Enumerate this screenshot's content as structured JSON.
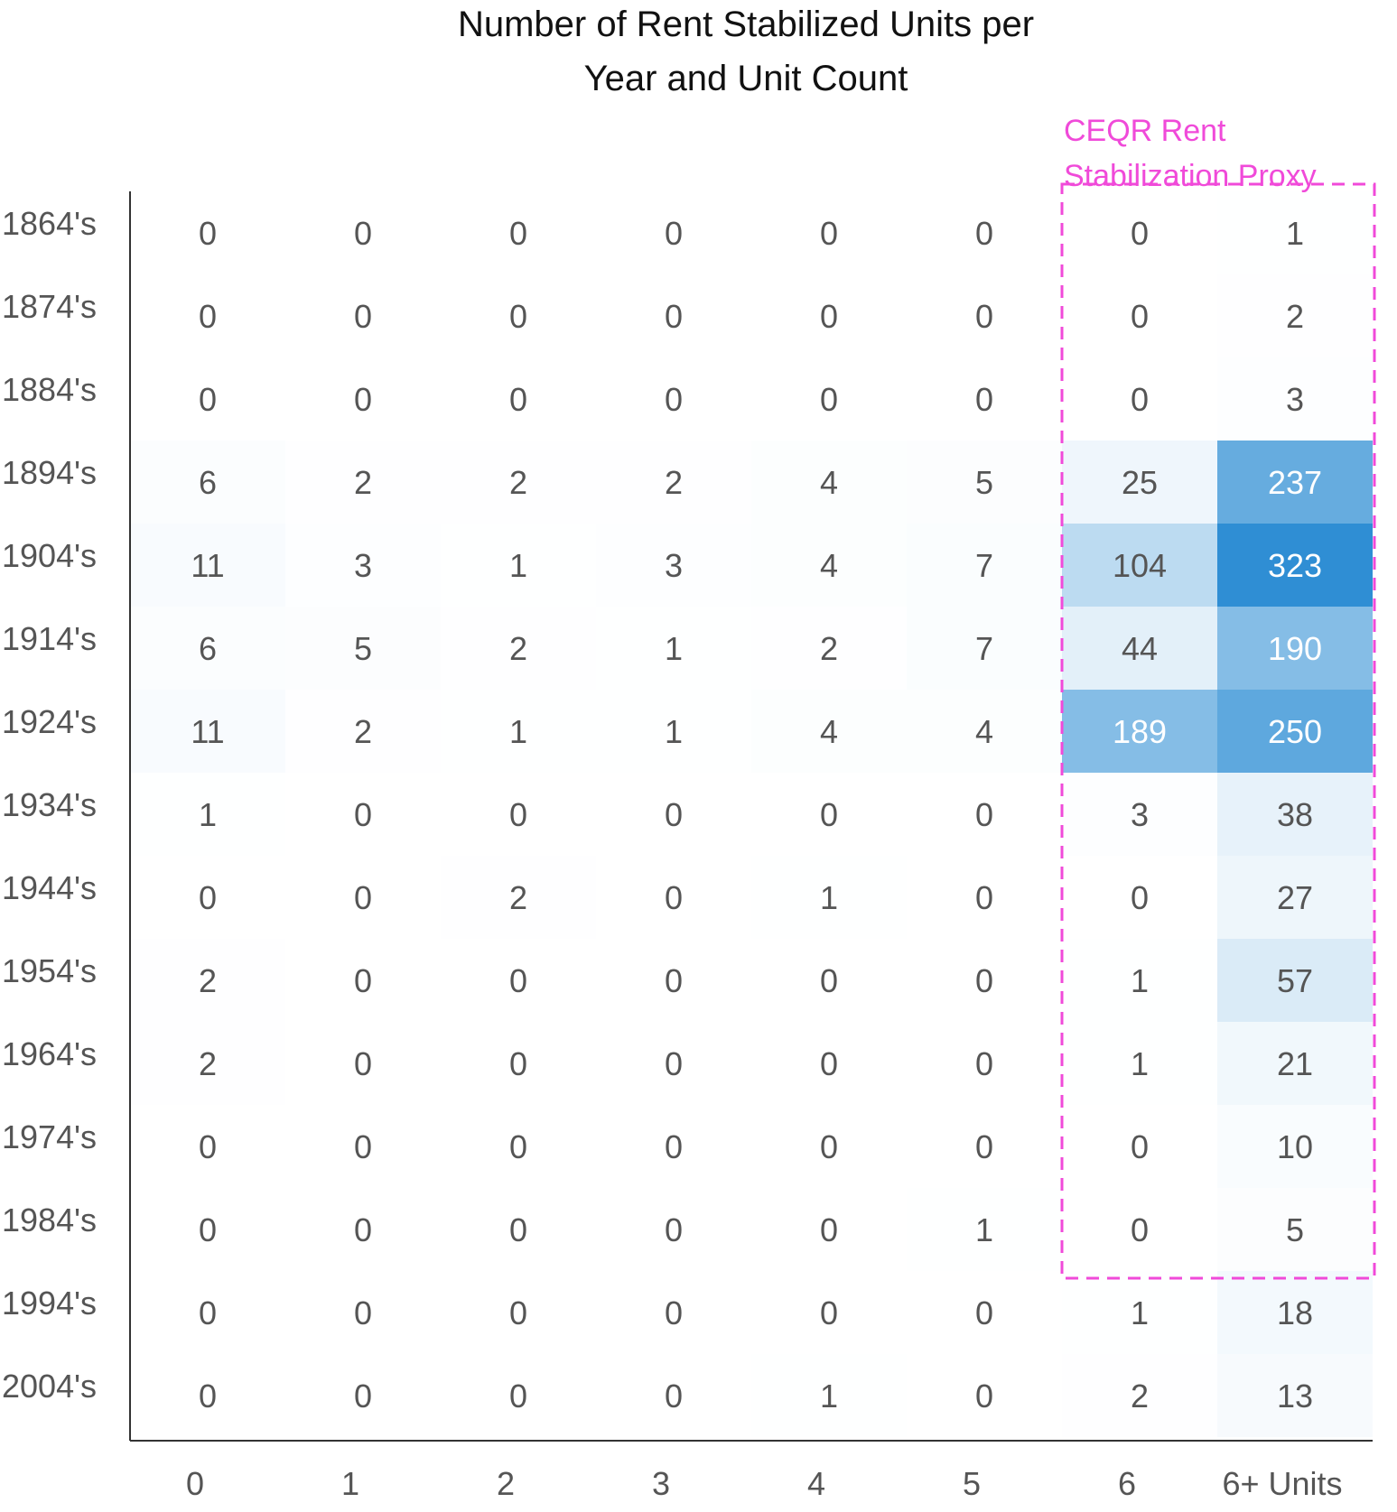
{
  "chart_data": {
    "type": "heatmap",
    "title_lines": [
      "Number of Rent Stabilized Units per",
      "Year and Unit Count"
    ],
    "x": [
      "0",
      "1",
      "2",
      "3",
      "4",
      "5",
      "6",
      "6+ Units"
    ],
    "y": [
      "1864's",
      "1874's",
      "1884's",
      "1894's",
      "1904's",
      "1914's",
      "1924's",
      "1934's",
      "1944's",
      "1954's",
      "1964's",
      "1974's",
      "1984's",
      "1994's",
      "2004's"
    ],
    "values": [
      [
        0,
        0,
        0,
        0,
        0,
        0,
        0,
        1
      ],
      [
        0,
        0,
        0,
        0,
        0,
        0,
        0,
        2
      ],
      [
        0,
        0,
        0,
        0,
        0,
        0,
        0,
        3
      ],
      [
        6,
        2,
        2,
        2,
        4,
        5,
        25,
        237
      ],
      [
        11,
        3,
        1,
        3,
        4,
        7,
        104,
        323
      ],
      [
        6,
        5,
        2,
        1,
        2,
        7,
        44,
        190
      ],
      [
        11,
        2,
        1,
        1,
        4,
        4,
        189,
        250
      ],
      [
        1,
        0,
        0,
        0,
        0,
        0,
        3,
        38
      ],
      [
        0,
        0,
        2,
        0,
        1,
        0,
        0,
        27
      ],
      [
        2,
        0,
        0,
        0,
        0,
        0,
        1,
        57
      ],
      [
        2,
        0,
        0,
        0,
        0,
        0,
        1,
        21
      ],
      [
        0,
        0,
        0,
        0,
        0,
        0,
        0,
        10
      ],
      [
        0,
        0,
        0,
        0,
        0,
        1,
        0,
        5
      ],
      [
        0,
        0,
        0,
        0,
        0,
        0,
        1,
        18
      ],
      [
        0,
        0,
        0,
        0,
        1,
        0,
        2,
        13
      ]
    ],
    "color_scale": {
      "low": "#ffffff",
      "high": "#2f8ed4",
      "max": 323
    },
    "annotation": {
      "text_lines": [
        "CEQR Rent",
        "Stabilization Proxy"
      ],
      "color": "#f04ad9",
      "columns": [
        "6",
        "6+ Units"
      ],
      "rows": [
        "1864's",
        "2004's"
      ]
    },
    "text_color": "#555555",
    "light_text_color": "#ffffff",
    "grid": false
  }
}
